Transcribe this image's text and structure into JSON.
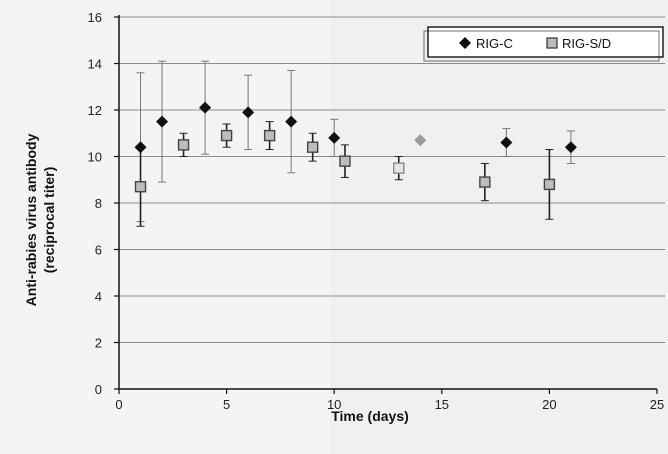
{
  "chart_data": {
    "type": "scatter",
    "title": "",
    "xlabel": "Time (days)",
    "ylabel": "Anti-rabies virus antibody",
    "ylabel2": "(reciprocal titer)",
    "xlim": [
      0,
      25
    ],
    "ylim": [
      0,
      16
    ],
    "x_ticks": [
      0,
      5,
      10,
      15,
      20,
      25
    ],
    "y_ticks": [
      0,
      2,
      4,
      6,
      8,
      10,
      12,
      14,
      16
    ],
    "grid": "horizontal",
    "legend_position": "top-right",
    "series": [
      {
        "name": "RIG-C",
        "marker": "diamond",
        "color": "#111111",
        "points": [
          {
            "x": 1,
            "y": 10.4,
            "err": 3.2
          },
          {
            "x": 2,
            "y": 11.5,
            "err": 2.6
          },
          {
            "x": 4,
            "y": 12.1,
            "err": 2.0
          },
          {
            "x": 6,
            "y": 11.9,
            "err": 1.6
          },
          {
            "x": 8,
            "y": 11.5,
            "err": 2.2
          },
          {
            "x": 10,
            "y": 10.8,
            "err": 0.8
          },
          {
            "x": 14,
            "y": 10.7,
            "err": 0.0,
            "color": "#9a9a9a"
          },
          {
            "x": 18,
            "y": 10.6,
            "err": 0.6
          },
          {
            "x": 21,
            "y": 10.4,
            "err": 0.7
          }
        ]
      },
      {
        "name": "RIG-S/D",
        "marker": "square",
        "color": "#444444",
        "points": [
          {
            "x": 1,
            "y": 8.7,
            "err": 1.7
          },
          {
            "x": 3,
            "y": 10.5,
            "err": 0.5
          },
          {
            "x": 5,
            "y": 10.9,
            "err": 0.5
          },
          {
            "x": 7,
            "y": 10.9,
            "err": 0.6
          },
          {
            "x": 9,
            "y": 10.4,
            "err": 0.6
          },
          {
            "x": 10.5,
            "y": 9.8,
            "err": 0.7
          },
          {
            "x": 13,
            "y": 9.5,
            "err": 0.5,
            "color": "#8a8a8a"
          },
          {
            "x": 17,
            "y": 8.9,
            "err": 0.8
          },
          {
            "x": 20,
            "y": 8.8,
            "err": 1.5
          }
        ]
      }
    ]
  }
}
